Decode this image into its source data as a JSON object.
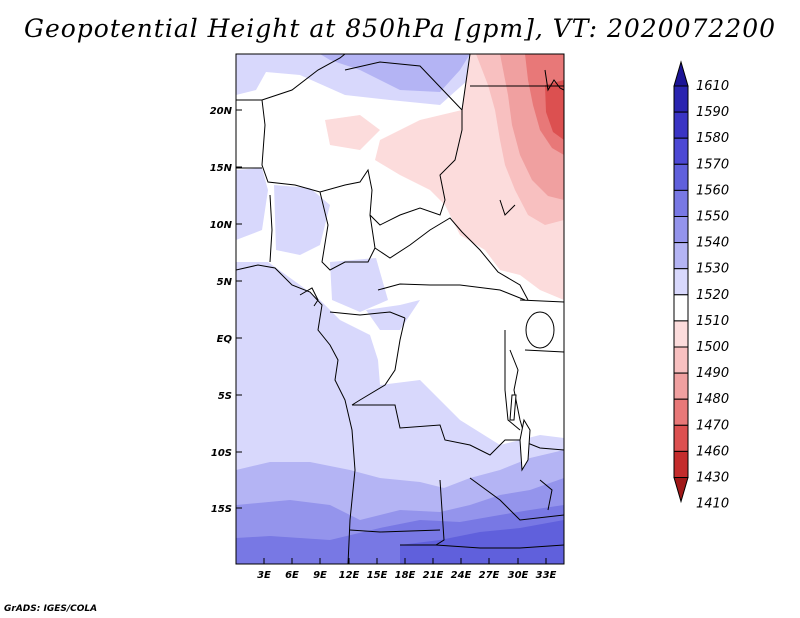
{
  "title": "Geopotential Height at 850hPa [gpm], VT: 2020072200",
  "credit": "GrADS: IGES/COLA",
  "map": {
    "lat_labels": [
      "20N",
      "15N",
      "10N",
      "5N",
      "EQ",
      "5S",
      "10S",
      "15S"
    ],
    "lon_labels": [
      "3E",
      "6E",
      "9E",
      "12E",
      "15E",
      "18E",
      "21E",
      "24E",
      "27E",
      "30E",
      "33E"
    ]
  },
  "colorbar": {
    "labels": [
      "1610",
      "1590",
      "1580",
      "1570",
      "1560",
      "1550",
      "1540",
      "1530",
      "1520",
      "1510",
      "1500",
      "1490",
      "1480",
      "1470",
      "1460",
      "1430",
      "1410"
    ],
    "colors": [
      "#1c1496",
      "#2a24b0",
      "#3a34c4",
      "#4c48d4",
      "#6060dc",
      "#7878e4",
      "#9494ec",
      "#b4b4f4",
      "#d8d8fc",
      "#ffffff",
      "#fcdcdc",
      "#f8c0c0",
      "#f0a0a0",
      "#e87878",
      "#dc5050",
      "#c42c2c",
      "#a01818"
    ]
  }
}
